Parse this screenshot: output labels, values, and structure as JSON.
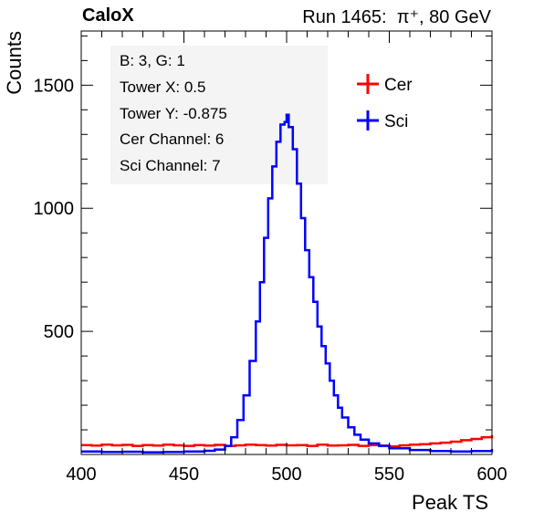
{
  "header": {
    "brand": "CaloX",
    "run_label": "Run 1465:",
    "beam_label": "π⁺, 80 GeV"
  },
  "info_box": {
    "lines": [
      "B: 3, G: 1",
      "Tower X: 0.5",
      "Tower Y: -0.875",
      "Cer Channel: 6",
      "Sci Channel: 7"
    ]
  },
  "colors": {
    "cer": "#ff0000",
    "sci": "#0000ff",
    "axis": "#000000"
  },
  "chart_data": {
    "type": "line",
    "style": "histogram-step",
    "xlabel": "Peak TS",
    "ylabel": "Counts",
    "xlim": [
      400,
      600
    ],
    "ylim": [
      0,
      1720
    ],
    "x_ticks": [
      400,
      450,
      500,
      550,
      600
    ],
    "y_ticks": [
      500,
      1000,
      1500
    ],
    "legend": {
      "placement": "top-right",
      "entries": [
        "Cer",
        "Sci"
      ]
    },
    "grid": false,
    "series": [
      {
        "name": "Cer",
        "color": "#ff0000",
        "x": [
          400,
          405,
          410,
          415,
          420,
          425,
          430,
          435,
          440,
          445,
          450,
          455,
          460,
          465,
          470,
          475,
          480,
          485,
          490,
          495,
          500,
          505,
          510,
          515,
          520,
          525,
          530,
          535,
          540,
          545,
          550,
          555,
          560,
          565,
          570,
          575,
          580,
          585,
          590,
          595,
          600
        ],
        "y": [
          38,
          36,
          40,
          37,
          39,
          35,
          38,
          36,
          40,
          37,
          35,
          38,
          36,
          39,
          34,
          37,
          40,
          38,
          36,
          39,
          37,
          38,
          35,
          40,
          36,
          37,
          39,
          35,
          38,
          36,
          33,
          37,
          40,
          42,
          45,
          48,
          52,
          58,
          63,
          70,
          78
        ]
      },
      {
        "name": "Sci",
        "color": "#0000ff",
        "x": [
          400,
          410,
          420,
          430,
          440,
          450,
          460,
          465,
          470,
          473,
          476,
          479,
          482,
          485,
          487,
          489,
          491,
          493,
          495,
          497,
          499,
          500,
          501,
          503,
          505,
          507,
          509,
          511,
          513,
          515,
          517,
          519,
          521,
          523,
          525,
          527,
          530,
          533,
          536,
          540,
          545,
          550,
          560,
          570,
          580,
          590,
          600
        ],
        "y": [
          12,
          10,
          11,
          9,
          10,
          12,
          15,
          20,
          35,
          70,
          140,
          240,
          380,
          540,
          700,
          880,
          1040,
          1170,
          1270,
          1340,
          1350,
          1380,
          1330,
          1240,
          1100,
          960,
          830,
          720,
          620,
          520,
          440,
          370,
          300,
          240,
          190,
          150,
          110,
          80,
          60,
          45,
          35,
          25,
          18,
          14,
          12,
          14,
          22
        ]
      }
    ]
  }
}
